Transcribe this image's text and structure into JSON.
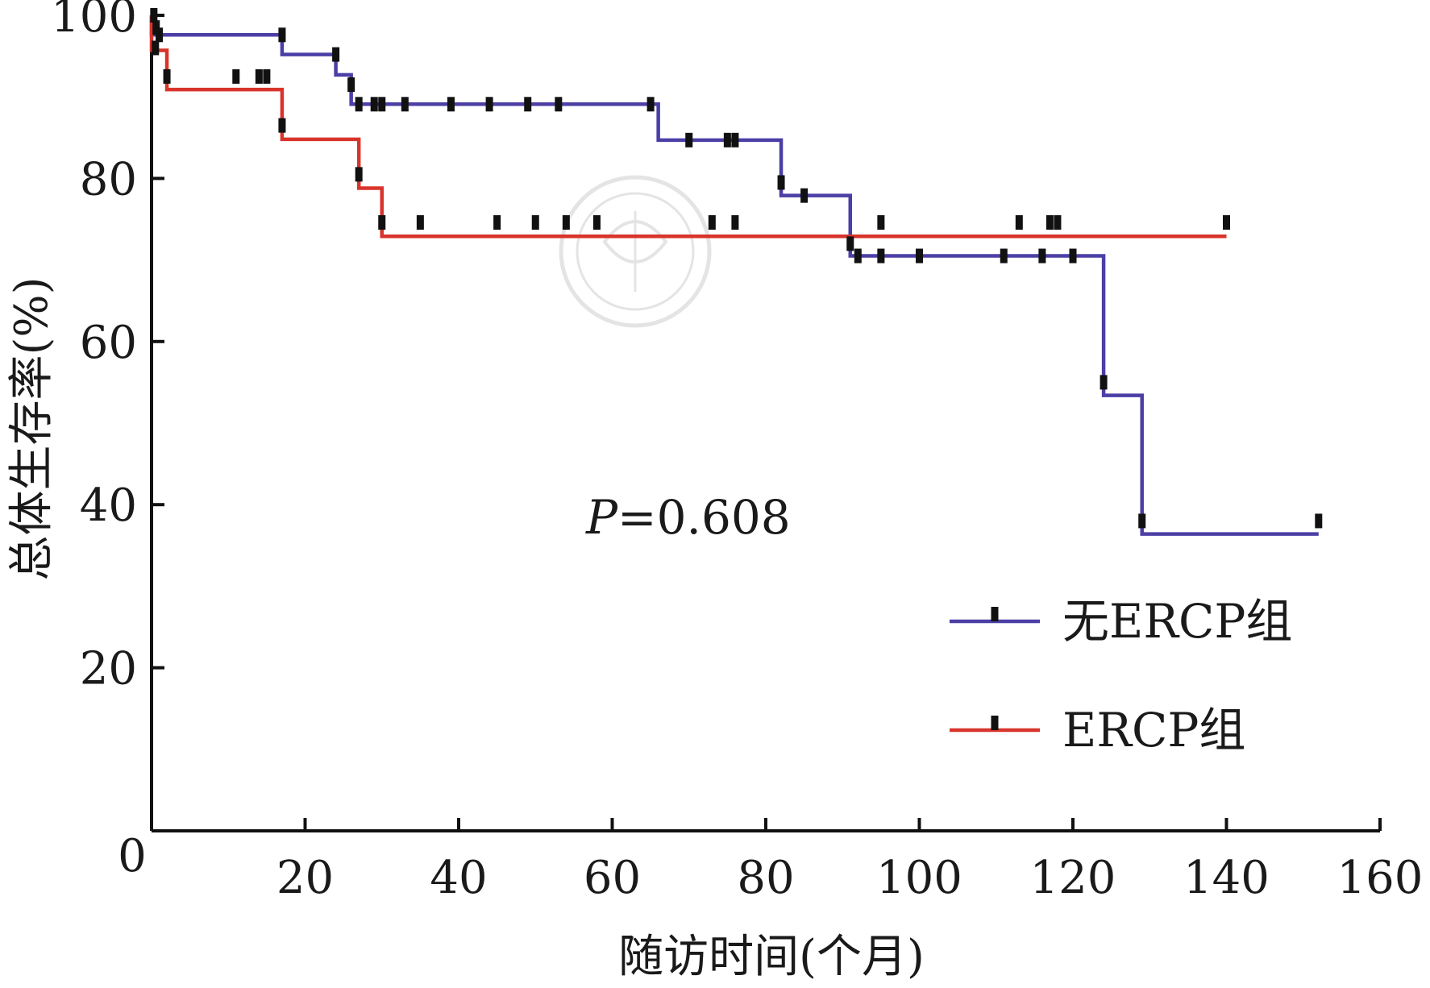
{
  "chart_data": {
    "type": "line",
    "subtype": "kaplan-meier step survival curve",
    "title": "",
    "xlabel": "随访时间(个月)",
    "ylabel": "总体生存率(%)",
    "xlim": [
      0,
      160
    ],
    "ylim": [
      0,
      100
    ],
    "xticks": [
      0,
      20,
      40,
      60,
      80,
      100,
      120,
      140,
      160
    ],
    "yticks": [
      20,
      40,
      60,
      80,
      100
    ],
    "grid": false,
    "legend": "right, middle-lower",
    "annotation": {
      "italic": "P",
      "rest": "=0.608"
    },
    "series": [
      {
        "name": "无ERCP组",
        "color": "#4b3fa6",
        "steps": [
          [
            0,
            100
          ],
          [
            0,
            97.6
          ],
          [
            17,
            95.2
          ],
          [
            24,
            92.7
          ],
          [
            26,
            89.1
          ],
          [
            66,
            84.7
          ],
          [
            82,
            77.9
          ],
          [
            91,
            70.5
          ],
          [
            124,
            53.4
          ],
          [
            129,
            36.4
          ],
          [
            152,
            36.4
          ]
        ],
        "censored": [
          [
            0.3,
            100
          ],
          [
            0.6,
            98.5
          ],
          [
            1,
            97.6
          ],
          [
            17,
            97.6
          ],
          [
            24,
            95.2
          ],
          [
            26,
            91.5
          ],
          [
            27,
            89.1
          ],
          [
            29,
            89.1
          ],
          [
            30,
            89.1
          ],
          [
            33,
            89.1
          ],
          [
            39,
            89.1
          ],
          [
            44,
            89.1
          ],
          [
            49,
            89.1
          ],
          [
            53,
            89.1
          ],
          [
            65,
            89.1
          ],
          [
            70,
            84.7
          ],
          [
            75,
            84.7
          ],
          [
            76,
            84.7
          ],
          [
            82,
            79.5
          ],
          [
            85,
            77.9
          ],
          [
            91,
            72
          ],
          [
            92,
            70.5
          ],
          [
            95,
            70.5
          ],
          [
            100,
            70.5
          ],
          [
            111,
            70.5
          ],
          [
            116,
            70.5
          ],
          [
            120,
            70.5
          ],
          [
            124,
            55
          ],
          [
            129,
            38
          ],
          [
            152,
            38
          ]
        ]
      },
      {
        "name": "ERCP组",
        "color": "#d8342b",
        "steps": [
          [
            0,
            100
          ],
          [
            0,
            95.7
          ],
          [
            2,
            90.9
          ],
          [
            17,
            84.8
          ],
          [
            27,
            78.8
          ],
          [
            30,
            72.9
          ],
          [
            140,
            72.9
          ]
        ],
        "censored": [
          [
            0.5,
            96
          ],
          [
            2,
            92.5
          ],
          [
            11,
            92.5
          ],
          [
            14,
            92.5
          ],
          [
            15,
            92.5
          ],
          [
            17,
            86.5
          ],
          [
            27,
            80.5
          ],
          [
            30,
            74.6
          ],
          [
            35,
            74.6
          ],
          [
            45,
            74.6
          ],
          [
            50,
            74.6
          ],
          [
            54,
            74.6
          ],
          [
            58,
            74.6
          ],
          [
            73,
            74.6
          ],
          [
            76,
            74.6
          ],
          [
            95,
            74.6
          ],
          [
            113,
            74.6
          ],
          [
            117,
            74.6
          ],
          [
            118,
            74.6
          ],
          [
            140,
            74.6
          ]
        ]
      }
    ]
  }
}
